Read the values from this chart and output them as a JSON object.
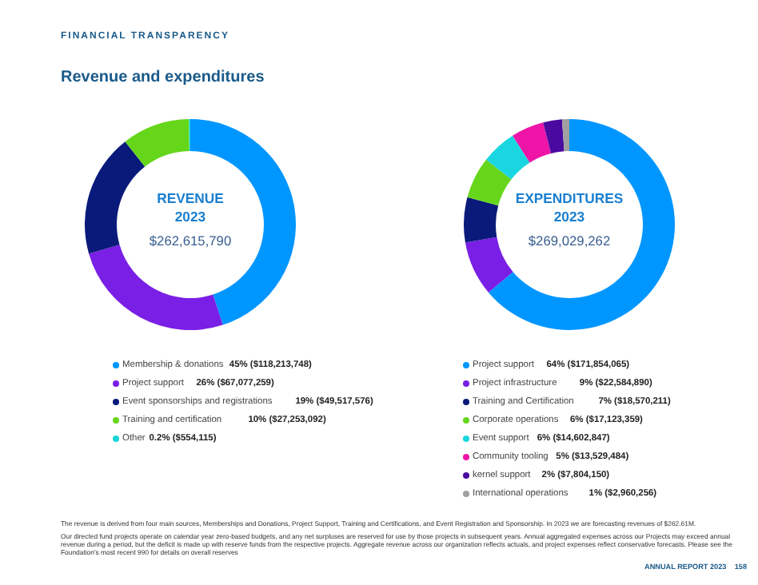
{
  "chart_data": [
    {
      "type": "donut",
      "title": "REVENUE 2023",
      "subtitle": "$262,615,790",
      "categories": [
        "Membership & donations",
        "Project support",
        "Event sponsorships and registrations",
        "Training and certification",
        "Other"
      ],
      "values": [
        118213748,
        67077259,
        49517576,
        27253092,
        554115
      ],
      "colors": [
        "#0096ff",
        "#7a1fe6",
        "#0a1a7a",
        "#66d61a",
        "#1ad6d6"
      ],
      "value_labels": [
        "45% ($118,213,748)",
        "26% ($67,077,259)",
        "19% ($49,517,576)",
        "10% ($27,253,092)",
        "0.2% ($554,115)"
      ],
      "legend": "bottom",
      "annotations": [
        "FINANCIAL TRANSPARENCY",
        "Revenue and expenditures",
        "The revenue is derived from four main sources, Memberships and Donations, Project Support, Training and Certifications, and Event Registration and Sponsorship. In 2023 we are forecasting revenues of $262.61M.",
        "Our directed fund projects operate on calendar year zero-based budgets, and any net surpluses are reserved for use by those projects in subsequent years. Annual aggregated expenses across our Projects may exceed annual revenue during a period, but the deficit is made up with reserve funds from the respective projects. Aggregate revenue across our organization reflects actuals, and project expenses reflect conservative forecasts. Please see the Foundation's most recent 990 for details on overall reserves",
        "ANNUAL REPORT 2023",
        "158"
      ]
    },
    {
      "type": "donut",
      "title": "EXPENDITURES 2023",
      "subtitle": "$269,029,262",
      "categories": [
        "Project support",
        "Project infrastructure",
        "Training and Certification",
        "Corporate operations",
        "Event support",
        "Community tooling",
        "kernel support",
        "International operations"
      ],
      "values": [
        171854065,
        22584890,
        18570211,
        17123359,
        14602847,
        13529484,
        7804150,
        2960256
      ],
      "colors": [
        "#0096ff",
        "#7a1fe6",
        "#0a1a7a",
        "#66d61a",
        "#1ad6e0",
        "#ee14a8",
        "#4a0aa0",
        "#a0a0a0"
      ],
      "value_labels": [
        "64% ($171,854,065)",
        "9% ($22,584,890)",
        "7% ($18,570,211)",
        "6% ($17,123,359)",
        "6% ($14,602,847)",
        "5% ($13,529,484)",
        "2% ($7,804,150)",
        "1% ($2,960,256)"
      ],
      "legend": "bottom"
    }
  ]
}
